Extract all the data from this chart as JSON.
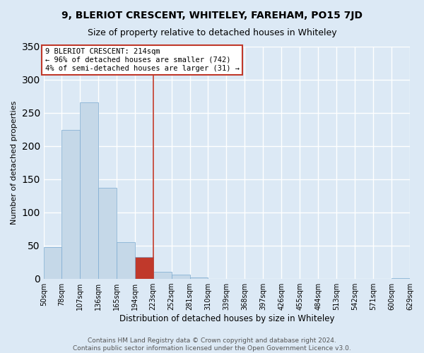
{
  "title": "9, BLERIOT CRESCENT, WHITELEY, FAREHAM, PO15 7JD",
  "subtitle": "Size of property relative to detached houses in Whiteley",
  "xlabel": "Distribution of detached houses by size in Whiteley",
  "ylabel": "Number of detached properties",
  "bar_edges": [
    50,
    78,
    107,
    136,
    165,
    194,
    223,
    252,
    281,
    310,
    339,
    368,
    397,
    426,
    455,
    484,
    513,
    542,
    571,
    600,
    629
  ],
  "bar_heights": [
    47,
    224,
    265,
    137,
    55,
    32,
    10,
    6,
    2,
    0,
    0,
    0,
    0,
    0,
    0,
    0,
    0,
    0,
    0,
    1
  ],
  "highlight_bar_index": 5,
  "bar_color_normal": "#c5d8e8",
  "bar_color_highlight": "#c0392b",
  "bar_edge_color": "#7baad0",
  "vline_x": 223,
  "vline_color": "#c0392b",
  "annotation_line1": "9 BLERIOT CRESCENT: 214sqm",
  "annotation_line2": "← 96% of detached houses are smaller (742)",
  "annotation_line3": "4% of semi-detached houses are larger (31) →",
  "annotation_box_color": "#ffffff",
  "annotation_box_edge": "#c0392b",
  "ylim": [
    0,
    350
  ],
  "tick_labels": [
    "50sqm",
    "78sqm",
    "107sqm",
    "136sqm",
    "165sqm",
    "194sqm",
    "223sqm",
    "252sqm",
    "281sqm",
    "310sqm",
    "339sqm",
    "368sqm",
    "397sqm",
    "426sqm",
    "455sqm",
    "484sqm",
    "513sqm",
    "542sqm",
    "571sqm",
    "600sqm",
    "629sqm"
  ],
  "footer_line1": "Contains HM Land Registry data © Crown copyright and database right 2024.",
  "footer_line2": "Contains public sector information licensed under the Open Government Licence v3.0.",
  "bg_color": "#dce9f5",
  "plot_bg_color": "#dce9f5",
  "grid_color": "#ffffff",
  "title_fontsize": 10,
  "subtitle_fontsize": 9,
  "ylabel_fontsize": 8,
  "xlabel_fontsize": 8.5,
  "tick_fontsize": 7,
  "annotation_fontsize": 7.5,
  "footer_fontsize": 6.5
}
